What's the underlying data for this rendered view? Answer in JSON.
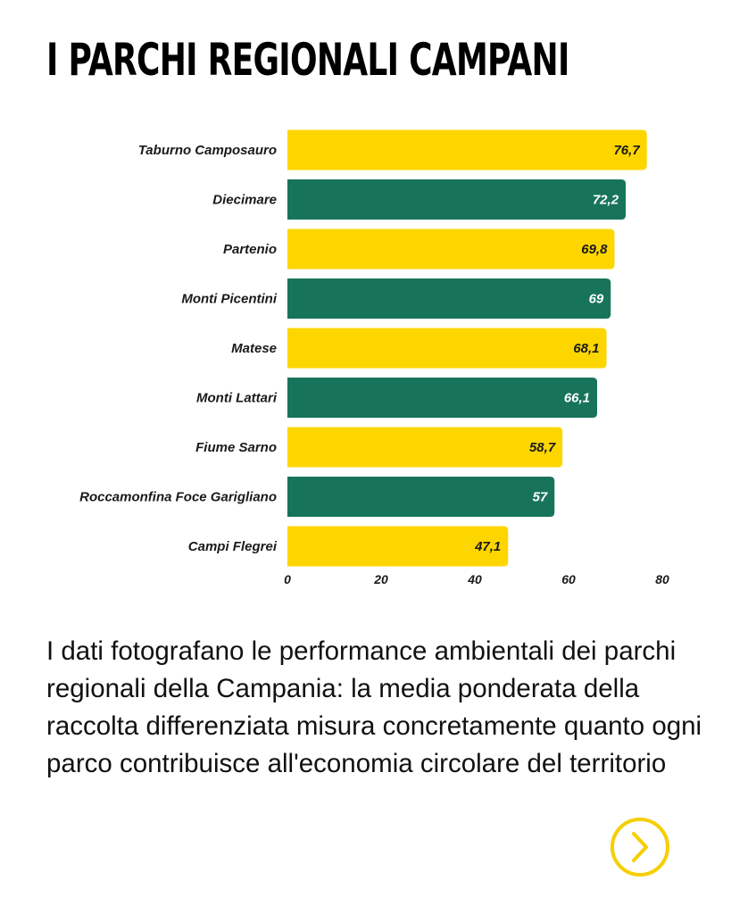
{
  "header": {
    "title": "I PARCHI REGIONALI CAMPANI"
  },
  "chart_data": {
    "type": "bar",
    "orientation": "horizontal",
    "categories": [
      "Taburno Camposauro",
      "Diecimare",
      "Partenio",
      "Monti Picentini",
      "Matese",
      "Monti Lattari",
      "Fiume Sarno",
      "Roccamonfina Foce Garigliano",
      "Campi Flegrei"
    ],
    "values": [
      76.7,
      72.2,
      69.8,
      69,
      68.1,
      66.1,
      58.7,
      57,
      47.1
    ],
    "value_labels": [
      "76,7",
      "72,2",
      "69,8",
      "69",
      "68,1",
      "66,1",
      "58,7",
      "57",
      "47,1"
    ],
    "xlim": [
      0,
      80
    ],
    "xticks": [
      0,
      20,
      40,
      60,
      80
    ],
    "xtick_labels": [
      "0",
      "20",
      "40",
      "60",
      "80"
    ],
    "grid": false,
    "colors": [
      "#fdd600",
      "#17745a"
    ]
  },
  "description": "I dati fotografano le performance ambientali dei parchi regionali della Campania: la media ponderata della raccolta differenziata misura concretamente quanto ogni parco contribuisce all'economia circolare del territorio",
  "nav": {
    "next_icon": "chevron-right-icon",
    "accent_color": "#f5cf00"
  }
}
